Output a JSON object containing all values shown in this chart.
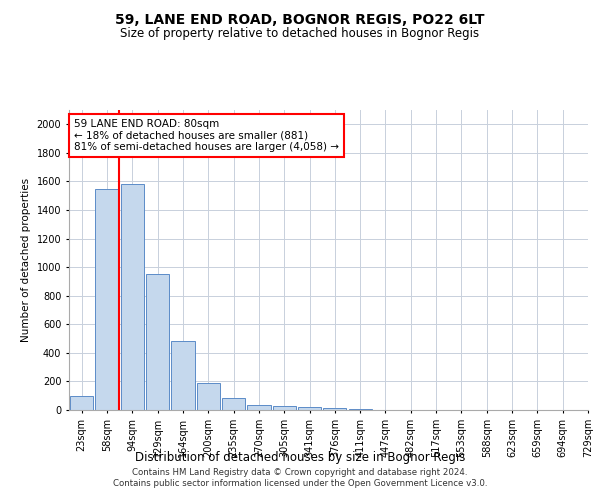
{
  "title1": "59, LANE END ROAD, BOGNOR REGIS, PO22 6LT",
  "title2": "Size of property relative to detached houses in Bognor Regis",
  "xlabel": "Distribution of detached houses by size in Bognor Regis",
  "ylabel": "Number of detached properties",
  "footer1": "Contains HM Land Registry data © Crown copyright and database right 2024.",
  "footer2": "Contains public sector information licensed under the Open Government Licence v3.0.",
  "bins": [
    "23sqm",
    "58sqm",
    "94sqm",
    "129sqm",
    "164sqm",
    "200sqm",
    "235sqm",
    "270sqm",
    "305sqm",
    "341sqm",
    "376sqm",
    "411sqm",
    "447sqm",
    "482sqm",
    "517sqm",
    "553sqm",
    "588sqm",
    "623sqm",
    "659sqm",
    "694sqm",
    "729sqm"
  ],
  "values": [
    100,
    1550,
    1580,
    950,
    480,
    190,
    85,
    35,
    25,
    20,
    15,
    10,
    0,
    0,
    0,
    0,
    0,
    0,
    0,
    0
  ],
  "bar_color": "#c5d8ed",
  "bar_edge_color": "#5b8cc8",
  "ylim": [
    0,
    2100
  ],
  "yticks": [
    0,
    200,
    400,
    600,
    800,
    1000,
    1200,
    1400,
    1600,
    1800,
    2000
  ],
  "red_line_bin": 1,
  "annotation_line1": "59 LANE END ROAD: 80sqm",
  "annotation_line2": "← 18% of detached houses are smaller (881)",
  "annotation_line3": "81% of semi-detached houses are larger (4,058) →",
  "background_color": "#ffffff",
  "grid_color": "#c8d0dc"
}
